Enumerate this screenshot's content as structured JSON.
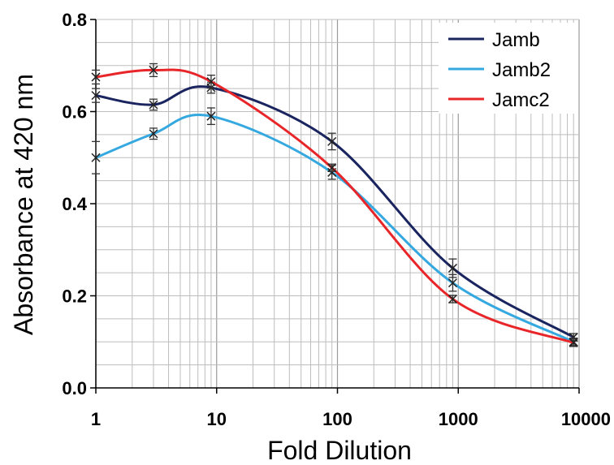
{
  "chart_data": {
    "type": "line",
    "title": "",
    "xlabel": "Fold Dilution",
    "ylabel": "Absorbance at 420 nm",
    "x_scale": "log",
    "xlim": [
      1,
      10000
    ],
    "ylim": [
      0.0,
      0.8
    ],
    "x_ticks": [
      "1",
      "10",
      "100",
      "1000",
      "10000"
    ],
    "y_ticks": [
      "0.0",
      "0.2",
      "0.4",
      "0.6",
      "0.8"
    ],
    "grid": true,
    "legend_position": "top-right",
    "x": [
      1,
      3,
      9,
      90,
      900,
      9000
    ],
    "series": [
      {
        "name": "Jamb",
        "color": "#1a2560",
        "values": [
          0.635,
          0.615,
          0.652,
          0.535,
          0.26,
          0.11
        ],
        "errors": [
          0.015,
          0.012,
          0.012,
          0.018,
          0.02,
          0.008
        ]
      },
      {
        "name": "Jamb2",
        "color": "#35a8e0",
        "values": [
          0.5,
          0.552,
          0.59,
          0.468,
          0.228,
          0.1
        ],
        "errors": [
          0.035,
          0.012,
          0.018,
          0.015,
          0.018,
          0.008
        ]
      },
      {
        "name": "Jamc2",
        "color": "#e8262a",
        "values": [
          0.675,
          0.69,
          0.665,
          0.478,
          0.193,
          0.098
        ],
        "errors": [
          0.015,
          0.014,
          0.014,
          0.008,
          0.008,
          0.008
        ]
      }
    ]
  }
}
